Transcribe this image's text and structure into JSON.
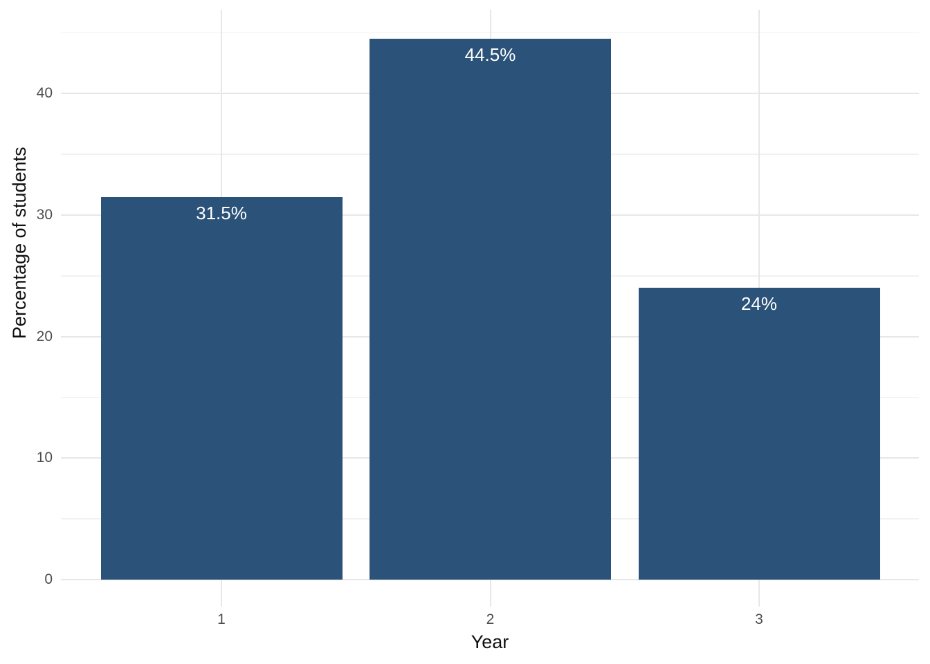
{
  "chart_data": {
    "type": "bar",
    "title": "",
    "xlabel": "Year",
    "ylabel": "Percentage of students",
    "categories": [
      "1",
      "2",
      "3"
    ],
    "values": [
      31.5,
      44.5,
      24
    ],
    "bar_labels": [
      "31.5%",
      "44.5%",
      "24%"
    ],
    "yticks": [
      "0",
      "10",
      "20",
      "30",
      "40"
    ],
    "ytick_values": [
      0,
      10,
      20,
      30,
      40
    ],
    "ytick_minor_values": [
      5,
      15,
      25,
      35,
      45
    ],
    "ylim": [
      -2.2,
      46.9
    ],
    "grid": "major and minor horizontal, major vertical at category centers",
    "legend_position": "none",
    "colors": {
      "bar_fill": "#2B5278",
      "bar_label_text": "#FFFFFF",
      "grid_major": "#E7E7E7",
      "grid_minor": "#F1F1F1",
      "axis_tick_text": "#4D4D4D",
      "axis_title_text": "#111111",
      "background": "#FFFFFF"
    }
  }
}
